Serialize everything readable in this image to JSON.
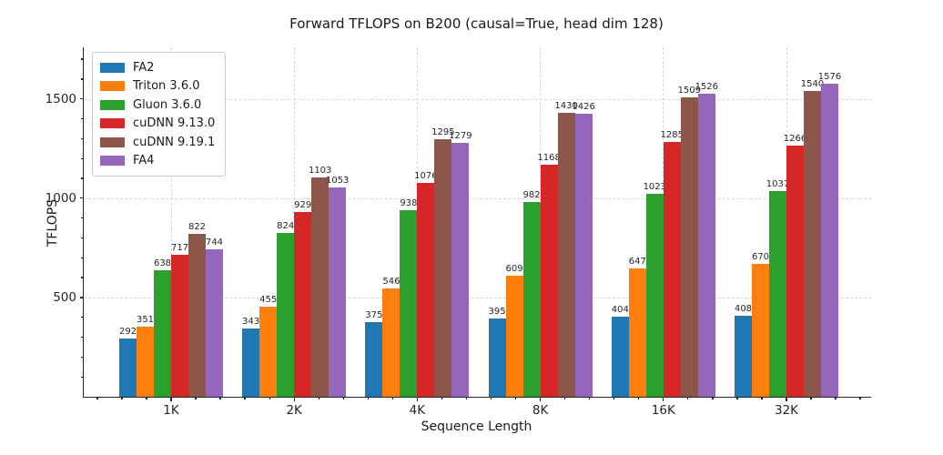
{
  "chart_data": {
    "type": "bar",
    "title": "Forward TFLOPS on B200 (causal=True, head dim 128)",
    "xlabel": "Sequence Length",
    "ylabel": "TFLOPS",
    "categories": [
      "1K",
      "2K",
      "4K",
      "8K",
      "16K",
      "32K"
    ],
    "series": [
      {
        "name": "FA2",
        "color": "#1f77b4",
        "values": [
          292,
          343,
          375,
          395,
          404,
          408
        ]
      },
      {
        "name": "Triton 3.6.0",
        "color": "#ff7f0e",
        "values": [
          351,
          455,
          546,
          609,
          647,
          670
        ]
      },
      {
        "name": "Gluon 3.6.0",
        "color": "#2ca02c",
        "values": [
          638,
          824,
          938,
          982,
          1023,
          1037
        ]
      },
      {
        "name": "cuDNN 9.13.0",
        "color": "#d62728",
        "values": [
          717,
          929,
          1076,
          1168,
          1285,
          1266
        ]
      },
      {
        "name": "cuDNN 9.19.1",
        "color": "#8c564b",
        "values": [
          822,
          1103,
          1295,
          1430,
          1509,
          1540
        ]
      },
      {
        "name": "FA4",
        "color": "#9467bd",
        "values": [
          744,
          1053,
          1279,
          1426,
          1526,
          1576
        ]
      }
    ],
    "yticks": [
      500,
      1000,
      1500
    ],
    "ylim": [
      0,
      1760
    ],
    "grid": true,
    "grid_style": "dashed",
    "legend_position": "upper-left",
    "bar_value_labels": true,
    "style": {
      "axis_color": "#262626",
      "grid_color": "#d7d7d7",
      "text_color": "#1a1a1a",
      "legend_border_color": "#cccccc",
      "background": "#ffffff"
    }
  }
}
